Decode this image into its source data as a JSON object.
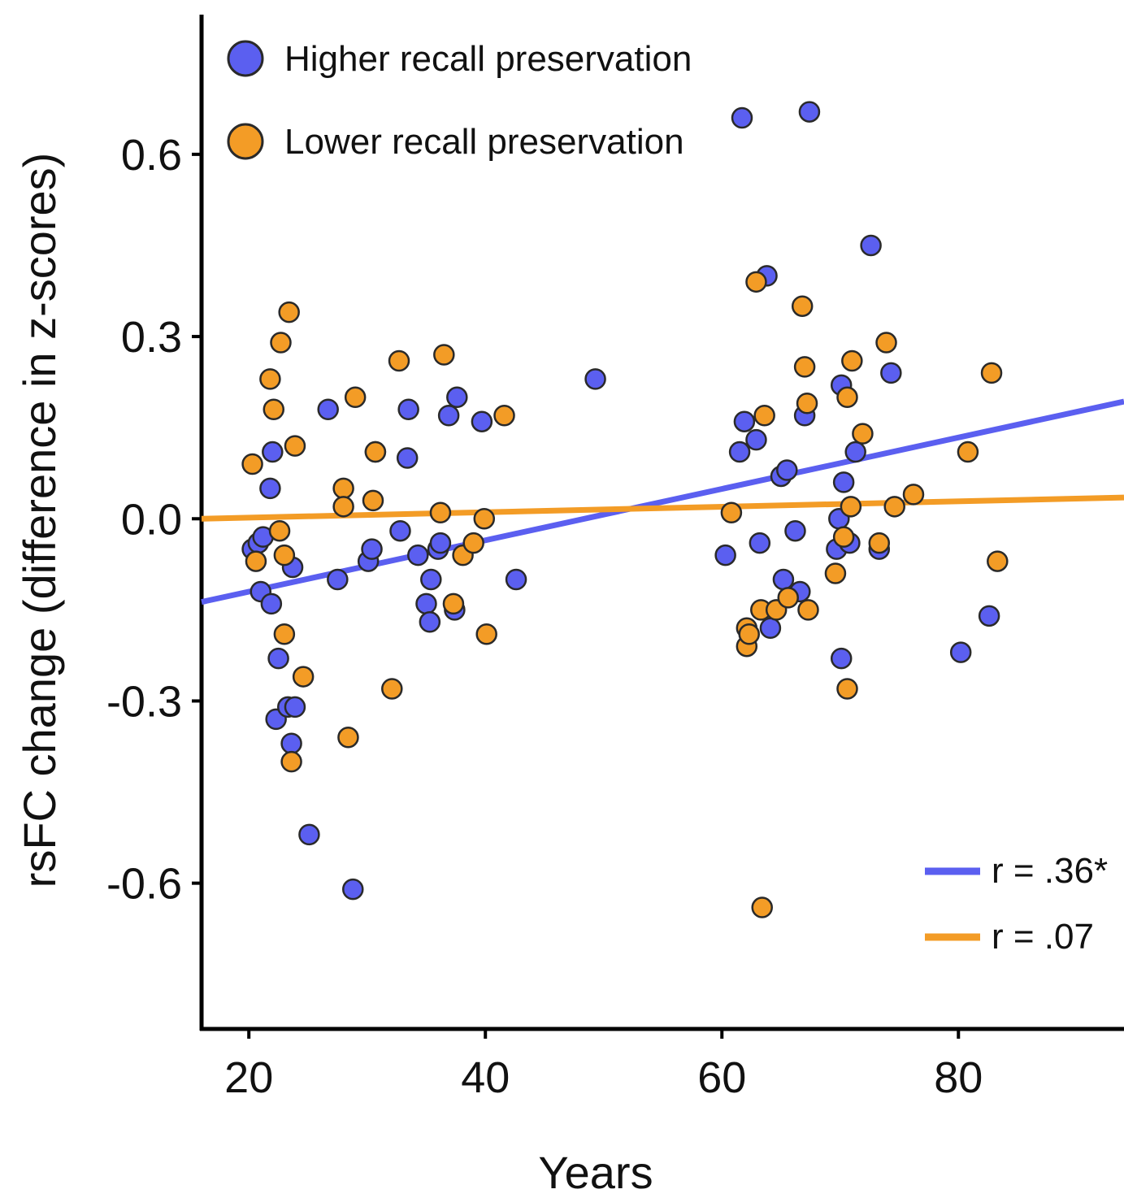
{
  "chart_data": {
    "type": "scatter",
    "title": "",
    "xlabel": "Years",
    "ylabel": "rsFC change (difference in z-scores)",
    "xlim": [
      16,
      94
    ],
    "ylim": [
      -0.84,
      0.83
    ],
    "xticks": [
      20,
      40,
      60,
      80
    ],
    "xtick_labels": [
      "20",
      "40",
      "60",
      "80"
    ],
    "yticks": [
      0.6,
      0.3,
      0.0,
      -0.3,
      -0.6
    ],
    "ytick_labels": [
      "0.6",
      "0.3",
      "0.0",
      "-0.3",
      "-0.6"
    ],
    "grid": false,
    "legend_position": "top-left",
    "series": [
      {
        "name": "Higher recall preservation",
        "color": "#5b5ff0",
        "points": [
          [
            20.3,
            -0.05
          ],
          [
            20.8,
            -0.04
          ],
          [
            21.2,
            -0.03
          ],
          [
            21.0,
            -0.12
          ],
          [
            21.9,
            -0.14
          ],
          [
            22.0,
            0.11
          ],
          [
            21.8,
            0.05
          ],
          [
            22.5,
            -0.23
          ],
          [
            22.3,
            -0.33
          ],
          [
            23.3,
            -0.31
          ],
          [
            23.9,
            -0.31
          ],
          [
            23.6,
            -0.37
          ],
          [
            23.7,
            -0.08
          ],
          [
            25.1,
            -0.52
          ],
          [
            26.7,
            0.18
          ],
          [
            27.5,
            -0.1
          ],
          [
            28.8,
            -0.61
          ],
          [
            30.1,
            -0.07
          ],
          [
            30.4,
            -0.05
          ],
          [
            30.7,
            0.11
          ],
          [
            32.8,
            -0.02
          ],
          [
            33.5,
            0.18
          ],
          [
            33.4,
            0.1
          ],
          [
            34.3,
            -0.06
          ],
          [
            35.0,
            -0.14
          ],
          [
            35.3,
            -0.17
          ],
          [
            35.4,
            -0.1
          ],
          [
            36.0,
            -0.05
          ],
          [
            36.2,
            -0.04
          ],
          [
            36.9,
            0.17
          ],
          [
            37.4,
            -0.15
          ],
          [
            37.6,
            0.2
          ],
          [
            39.7,
            0.16
          ],
          [
            42.6,
            -0.1
          ],
          [
            49.3,
            0.23
          ],
          [
            60.3,
            -0.06
          ],
          [
            61.5,
            0.11
          ],
          [
            61.7,
            0.66
          ],
          [
            61.9,
            0.16
          ],
          [
            62.9,
            0.13
          ],
          [
            63.2,
            -0.04
          ],
          [
            63.8,
            0.4
          ],
          [
            64.1,
            -0.18
          ],
          [
            65.0,
            0.07
          ],
          [
            65.2,
            -0.1
          ],
          [
            65.5,
            0.08
          ],
          [
            66.2,
            -0.02
          ],
          [
            66.6,
            -0.12
          ],
          [
            67.0,
            0.17
          ],
          [
            67.4,
            0.67
          ],
          [
            69.7,
            -0.05
          ],
          [
            69.9,
            0.0
          ],
          [
            70.1,
            0.22
          ],
          [
            70.1,
            -0.23
          ],
          [
            70.3,
            0.06
          ],
          [
            70.8,
            -0.04
          ],
          [
            71.3,
            0.11
          ],
          [
            72.6,
            0.45
          ],
          [
            73.3,
            -0.05
          ],
          [
            74.3,
            0.24
          ],
          [
            80.2,
            -0.22
          ],
          [
            82.6,
            -0.16
          ]
        ]
      },
      {
        "name": "Lower recall preservation",
        "color": "#f39c26",
        "points": [
          [
            20.3,
            0.09
          ],
          [
            20.6,
            -0.07
          ],
          [
            21.8,
            0.23
          ],
          [
            22.1,
            0.18
          ],
          [
            22.7,
            0.29
          ],
          [
            22.6,
            -0.02
          ],
          [
            23.0,
            -0.06
          ],
          [
            23.0,
            -0.19
          ],
          [
            23.4,
            0.34
          ],
          [
            23.6,
            -0.4
          ],
          [
            23.9,
            0.12
          ],
          [
            24.6,
            -0.26
          ],
          [
            28.0,
            0.05
          ],
          [
            28.0,
            0.02
          ],
          [
            28.4,
            -0.36
          ],
          [
            29.0,
            0.2
          ],
          [
            30.5,
            0.03
          ],
          [
            30.7,
            0.11
          ],
          [
            32.1,
            -0.28
          ],
          [
            32.7,
            0.26
          ],
          [
            36.2,
            0.01
          ],
          [
            36.5,
            0.27
          ],
          [
            37.3,
            -0.14
          ],
          [
            38.1,
            -0.06
          ],
          [
            39.0,
            -0.04
          ],
          [
            39.9,
            0.0
          ],
          [
            40.1,
            -0.19
          ],
          [
            41.6,
            0.17
          ],
          [
            60.8,
            0.01
          ],
          [
            62.1,
            -0.18
          ],
          [
            62.1,
            -0.21
          ],
          [
            62.3,
            -0.19
          ],
          [
            62.9,
            0.39
          ],
          [
            63.3,
            -0.15
          ],
          [
            63.4,
            -0.64
          ],
          [
            63.6,
            0.17
          ],
          [
            64.6,
            -0.15
          ],
          [
            65.6,
            -0.13
          ],
          [
            66.8,
            0.35
          ],
          [
            67.0,
            0.25
          ],
          [
            67.2,
            0.19
          ],
          [
            67.3,
            -0.15
          ],
          [
            69.6,
            -0.09
          ],
          [
            70.3,
            -0.03
          ],
          [
            70.6,
            -0.28
          ],
          [
            70.6,
            0.2
          ],
          [
            70.9,
            0.02
          ],
          [
            71.0,
            0.26
          ],
          [
            71.9,
            0.14
          ],
          [
            73.3,
            -0.04
          ],
          [
            73.9,
            0.29
          ],
          [
            74.6,
            0.02
          ],
          [
            76.2,
            0.04
          ],
          [
            80.8,
            0.11
          ],
          [
            82.8,
            0.24
          ],
          [
            83.3,
            -0.07
          ]
        ]
      }
    ],
    "fit_lines": [
      {
        "name": "r = .36*",
        "color": "#5b5ff0",
        "x": [
          16,
          94
        ],
        "y": [
          -0.137,
          0.193
        ]
      },
      {
        "name": "r = .07",
        "color": "#f39c26",
        "x": [
          16,
          94
        ],
        "y": [
          0.0,
          0.035
        ]
      }
    ]
  }
}
